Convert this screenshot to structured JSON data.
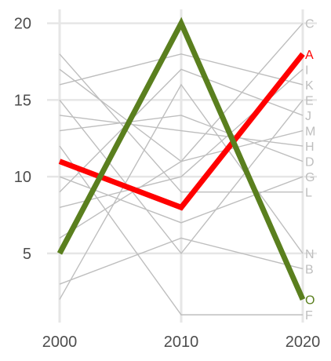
{
  "chart_data": {
    "type": "line",
    "title": "",
    "xlabel": "",
    "ylabel": "",
    "x": [
      2000,
      2010,
      2020
    ],
    "x_tick_labels": [
      "2000",
      "2010",
      "2020"
    ],
    "y_ticks": [
      5,
      10,
      15,
      20
    ],
    "y_tick_labels": [
      "5",
      "10",
      "15",
      "20"
    ],
    "xlim": [
      2000,
      2020
    ],
    "ylim": [
      0.7,
      20.7
    ],
    "grid": true,
    "legend": "none",
    "colors": {
      "background_series": "#bebebe",
      "gridline": "#e6e6e6",
      "highlight_A": "#ff0000",
      "highlight_O": "#5a7f1e"
    },
    "series": [
      {
        "name": "B",
        "values": [
          3,
          6,
          4
        ],
        "highlight": false
      },
      {
        "name": "C",
        "values": [
          17,
          11,
          20
        ],
        "highlight": false
      },
      {
        "name": "D",
        "values": [
          13,
          14,
          11
        ],
        "highlight": false
      },
      {
        "name": "E",
        "values": [
          15,
          5,
          15
        ],
        "highlight": false
      },
      {
        "name": "F",
        "values": [
          12,
          1,
          1
        ],
        "highlight": false
      },
      {
        "name": "G",
        "values": [
          10,
          7,
          10
        ],
        "highlight": false
      },
      {
        "name": "H",
        "values": [
          14,
          13,
          12
        ],
        "highlight": false
      },
      {
        "name": "I",
        "values": [
          8,
          10,
          17
        ],
        "highlight": false
      },
      {
        "name": "J",
        "values": [
          9,
          17,
          14
        ],
        "highlight": false
      },
      {
        "name": "K",
        "values": [
          16,
          18,
          16
        ],
        "highlight": false
      },
      {
        "name": "L",
        "values": [
          18,
          9,
          9
        ],
        "highlight": false
      },
      {
        "name": "M",
        "values": [
          6,
          11,
          13
        ],
        "highlight": false
      },
      {
        "name": "N",
        "values": [
          2,
          16,
          5
        ],
        "highlight": false
      },
      {
        "name": "A",
        "values": [
          11,
          8,
          18
        ],
        "highlight": true
      },
      {
        "name": "O",
        "values": [
          5,
          20,
          2
        ],
        "highlight": true
      }
    ]
  }
}
